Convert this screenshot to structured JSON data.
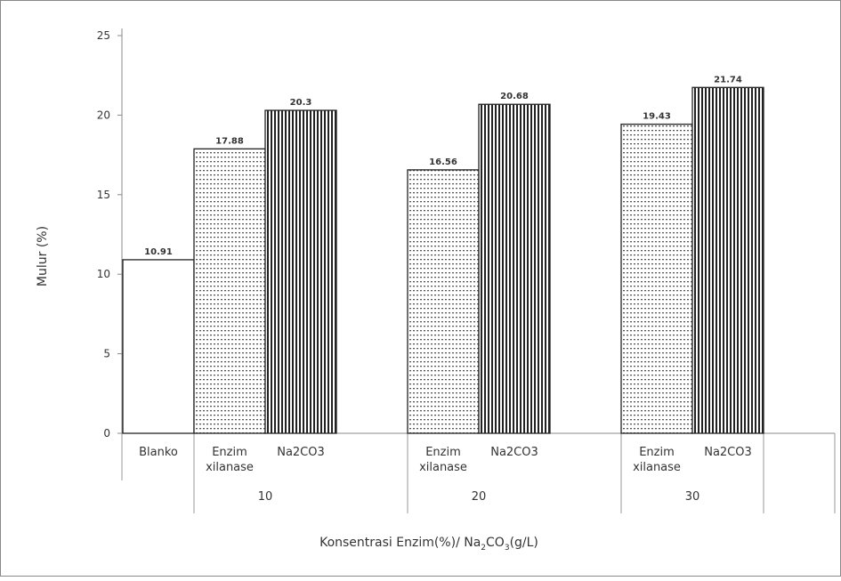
{
  "chart_data": {
    "type": "bar",
    "ylabel": "Mulur (%)",
    "xlabel": "Konsentrasi Enzim(%)/ Na",
    "xlabel_sub": "2",
    "xlabel_mid": "CO",
    "xlabel_sub2": "3",
    "xlabel_end": "(g/L)",
    "ylim": [
      0,
      25
    ],
    "yticks": [
      "0",
      "5",
      "10",
      "15",
      "20",
      "25"
    ],
    "grid": false,
    "groups": [
      {
        "label": "",
        "bars": [
          {
            "category": "Blanko",
            "category_line2": "",
            "value": 10.91,
            "value_label": "10.91",
            "pattern": "plain"
          }
        ]
      },
      {
        "label": "10",
        "bars": [
          {
            "category": "Enzim",
            "category_line2": "xilanase",
            "value": 17.88,
            "value_label": "17.88",
            "pattern": "dots"
          },
          {
            "category": "Na2CO3",
            "category_line2": "",
            "value": 20.3,
            "value_label": "20.3",
            "pattern": "vstripes"
          }
        ]
      },
      {
        "label": "20",
        "bars": [
          {
            "category": "Enzim",
            "category_line2": "xilanase",
            "value": 16.56,
            "value_label": "16.56",
            "pattern": "dots"
          },
          {
            "category": "Na2CO3",
            "category_line2": "",
            "value": 20.68,
            "value_label": "20.68",
            "pattern": "vstripes"
          }
        ]
      },
      {
        "label": "30",
        "bars": [
          {
            "category": "Enzim",
            "category_line2": "xilanase",
            "value": 19.43,
            "value_label": "19.43",
            "pattern": "dots"
          },
          {
            "category": "Na2CO3",
            "category_line2": "",
            "value": 21.74,
            "value_label": "21.74",
            "pattern": "vstripes"
          }
        ]
      }
    ]
  }
}
